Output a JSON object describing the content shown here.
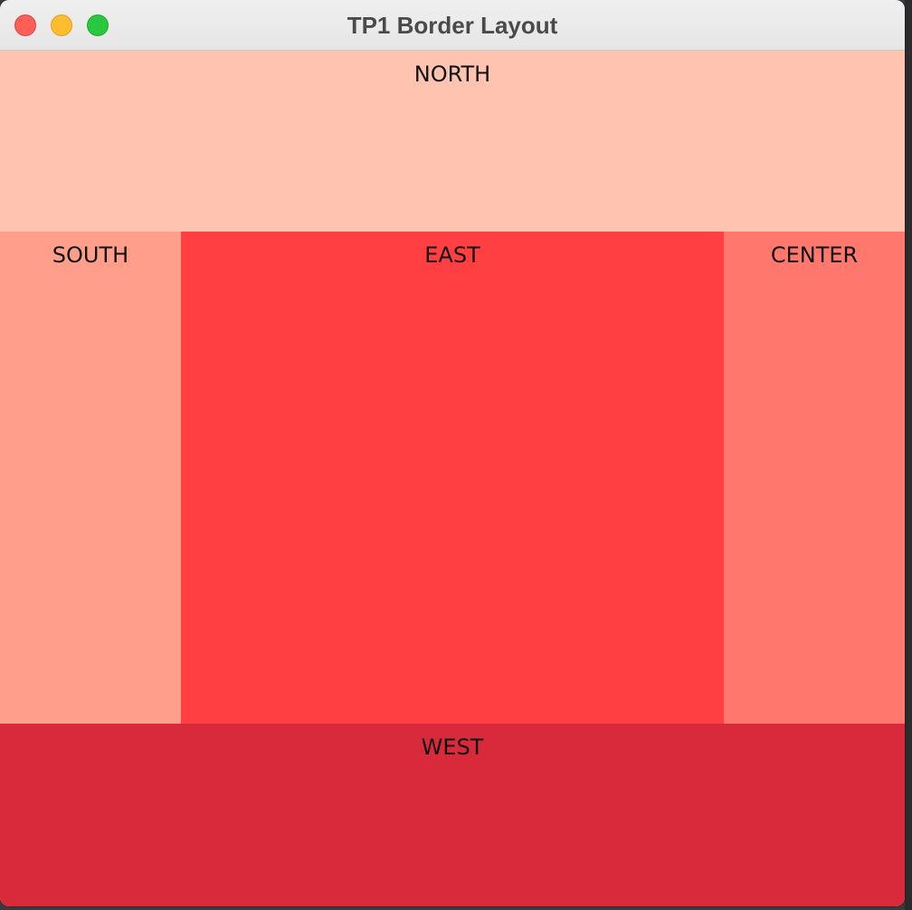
{
  "window": {
    "title": "TP1 Border Layout"
  },
  "panels": {
    "north": {
      "label": "NORTH",
      "color": "#ffc4b0"
    },
    "south": {
      "label": "SOUTH",
      "color": "#ff9f8b"
    },
    "east": {
      "label": "EAST",
      "color": "#ff3f41"
    },
    "center": {
      "label": "CENTER",
      "color": "#ff776d"
    },
    "west": {
      "label": "WEST",
      "color": "#d92a3c"
    }
  },
  "traffic_lights": {
    "close": "#ff5f57",
    "minimize": "#febc2e",
    "maximize": "#28c840"
  }
}
